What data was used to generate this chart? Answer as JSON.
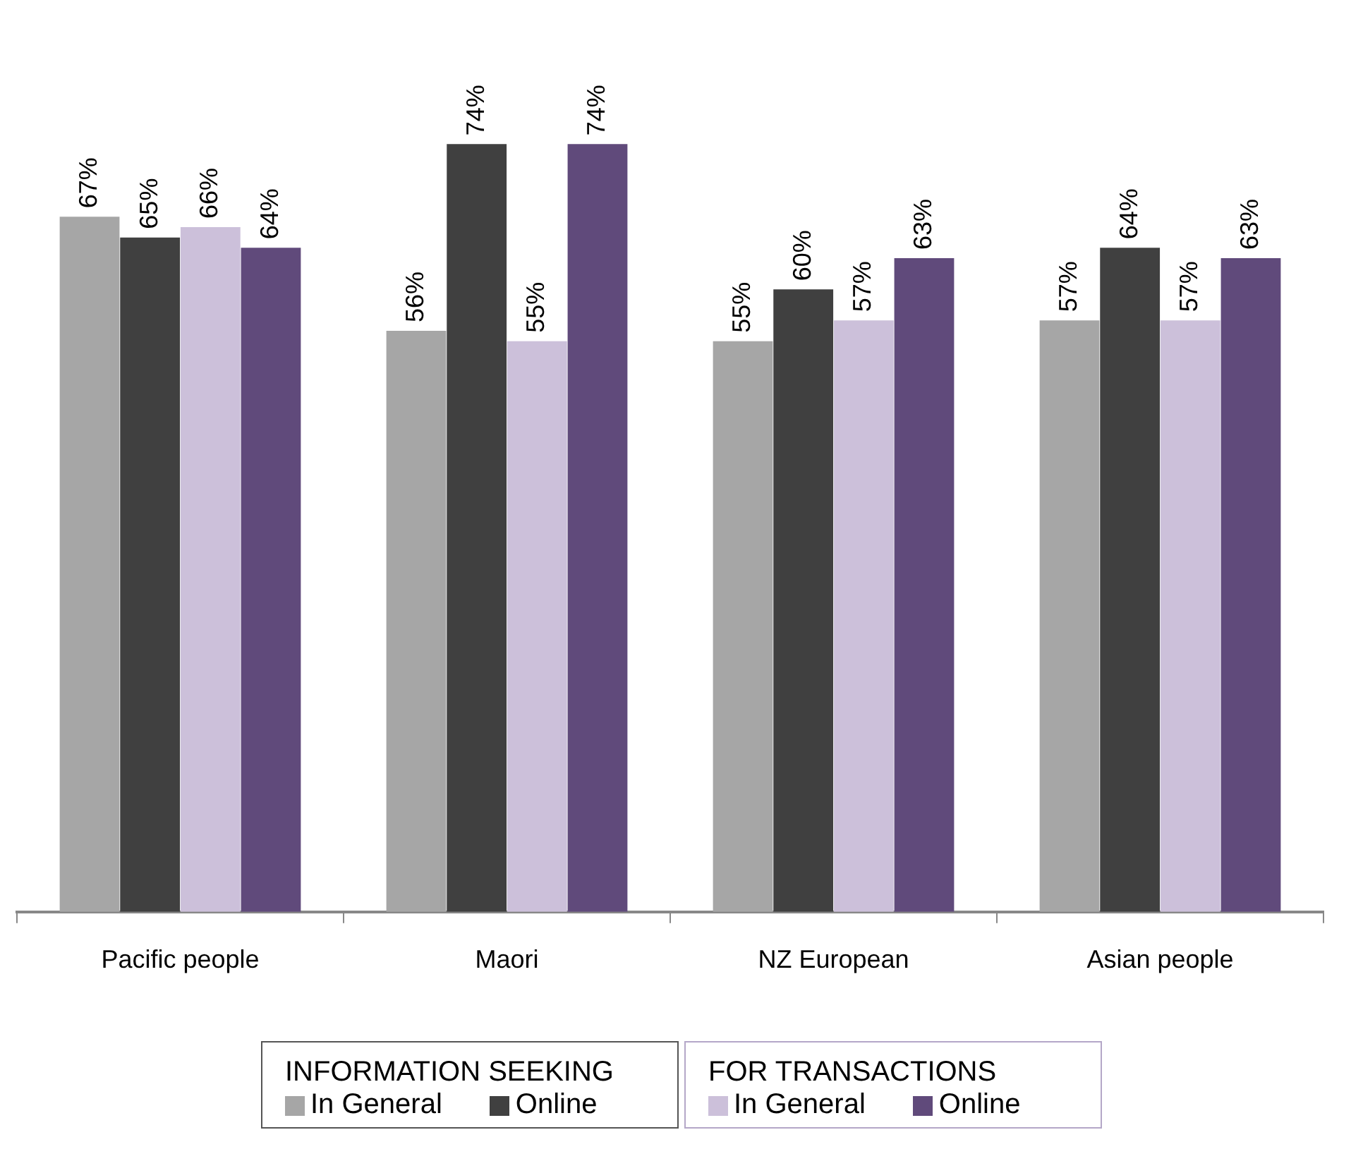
{
  "chart_data": {
    "type": "bar",
    "categories": [
      "Pacific people",
      "Maori",
      "NZ European",
      "Asian people"
    ],
    "series": [
      {
        "name": "In General",
        "color": "#a6a6a6",
        "values": [
          67,
          56,
          55,
          57
        ],
        "value_labels": [
          "67%",
          "56%",
          "55%",
          "57%"
        ]
      },
      {
        "name": "Online",
        "color": "#404040",
        "values": [
          65,
          74,
          60,
          64
        ],
        "value_labels": [
          "65%",
          "74%",
          "60%",
          "64%"
        ]
      },
      {
        "name": "In General",
        "color": "#ccc0da",
        "values": [
          66,
          55,
          57,
          57
        ],
        "value_labels": [
          "66%",
          "55%",
          "57%",
          "57%"
        ]
      },
      {
        "name": "Online",
        "color": "#604a7b",
        "values": [
          64,
          74,
          63,
          63
        ],
        "value_labels": [
          "64%",
          "74%",
          "63%",
          "63%"
        ]
      }
    ],
    "tick_labels": "x",
    "grid": false,
    "legend": "bottom",
    "annotations": [
      "INFORMATION SEEKING",
      "FOR TRANSACTIONS"
    ]
  }
}
